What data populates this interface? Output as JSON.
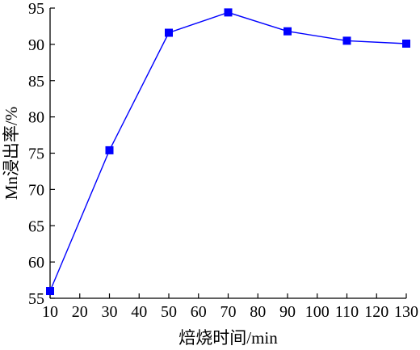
{
  "chart_data": {
    "type": "line",
    "title": "",
    "xlabel": "焙烧时间/min",
    "ylabel": "Mn浸出率/%",
    "xlim": [
      10,
      130
    ],
    "ylim": [
      55,
      95
    ],
    "x_ticks": [
      10,
      20,
      30,
      40,
      50,
      60,
      70,
      80,
      90,
      100,
      110,
      120,
      130
    ],
    "y_ticks": [
      55,
      60,
      65,
      70,
      75,
      80,
      85,
      90,
      95
    ],
    "grid": false,
    "legend": "none",
    "series": [
      {
        "x": [
          10,
          30,
          50,
          70,
          90,
          110,
          130
        ],
        "y": [
          56.0,
          75.4,
          91.6,
          94.4,
          91.8,
          90.5,
          90.1
        ],
        "color": "#0000ff",
        "marker": "square"
      }
    ],
    "axis_color": "#000000"
  }
}
